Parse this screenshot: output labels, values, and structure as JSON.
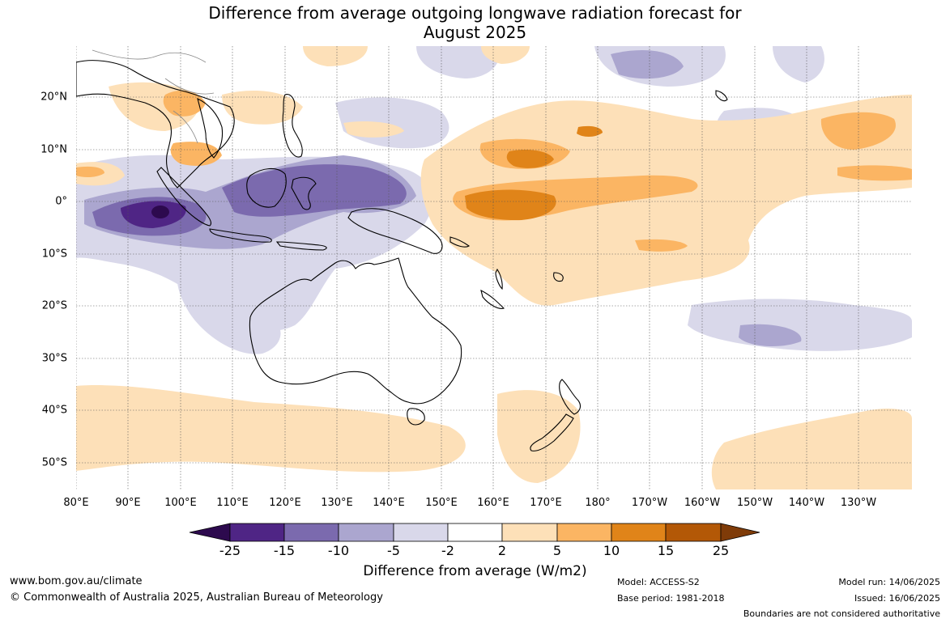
{
  "title_line1": "Difference from average outgoing longwave radiation forecast for",
  "title_line2": "August 2025",
  "longitude_labels": [
    "80°E",
    "90°E",
    "100°E",
    "110°E",
    "120°E",
    "130°E",
    "140°E",
    "150°E",
    "160°E",
    "170°E",
    "180°",
    "170°W",
    "160°W",
    "150°W",
    "140°W",
    "130°W"
  ],
  "latitude_labels": [
    "20°N",
    "10°N",
    "0°",
    "10°S",
    "20°S",
    "30°S",
    "40°S",
    "50°S"
  ],
  "colorbar": {
    "labels": [
      "-25",
      "-15",
      "-10",
      "-5",
      "-2",
      "2",
      "5",
      "10",
      "15",
      "25"
    ],
    "colors": [
      "#2d0a4e",
      "#4f2585",
      "#7b6aae",
      "#aba6cf",
      "#d9d8ea",
      "#ffffff",
      "#fde0b8",
      "#fbb563",
      "#e08419",
      "#b35806",
      "#7f3b08"
    ],
    "title": "Difference from average (W/m2)"
  },
  "footer": {
    "website": "www.bom.gov.au/climate",
    "copyright": "© Commonwealth of Australia 2025, Australian Bureau of Meteorology",
    "model": "Model: ACCESS-S2",
    "base_period": "Base period: 1981-2018",
    "model_run": "Model run: 14/06/2025",
    "issued": "Issued: 16/06/2025",
    "boundaries": "Boundaries are not considered authoritative"
  }
}
